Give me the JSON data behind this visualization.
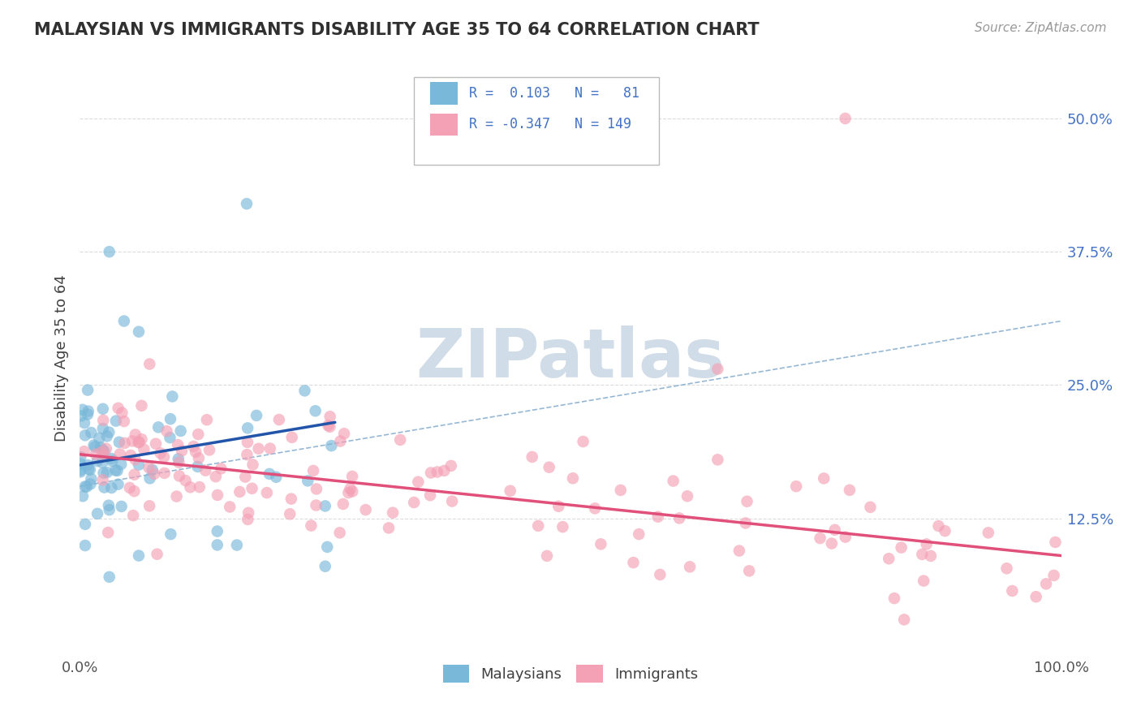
{
  "title": "MALAYSIAN VS IMMIGRANTS DISABILITY AGE 35 TO 64 CORRELATION CHART",
  "source": "Source: ZipAtlas.com",
  "ylabel": "Disability Age 35 to 64",
  "yticks": [
    "12.5%",
    "25.0%",
    "37.5%",
    "50.0%"
  ],
  "ytick_vals": [
    0.125,
    0.25,
    0.375,
    0.5
  ],
  "xlim": [
    0.0,
    1.0
  ],
  "ylim": [
    0.0,
    0.55
  ],
  "legend_label1": "Malaysians",
  "legend_label2": "Immigrants",
  "blue_color": "#7ab8d9",
  "pink_color": "#f4a0b5",
  "blue_line_color": "#2255aa",
  "pink_line_color": "#e0507a",
  "dash_line_color": "#8ab0d0",
  "background_color": "#ffffff",
  "grid_color": "#cccccc",
  "title_color": "#303030",
  "right_label_color": "#4472c4",
  "legend_text_color": "#4472c4",
  "watermark_color": "#d0dce8",
  "watermark_text": "ZIPatlas",
  "blue_line_x0": 0.0,
  "blue_line_y0": 0.175,
  "blue_line_x1": 0.26,
  "blue_line_y1": 0.215,
  "pink_line_x0": 0.0,
  "pink_line_y0": 0.185,
  "pink_line_x1": 1.0,
  "pink_line_y1": 0.09,
  "dash_line_x0": 0.0,
  "dash_line_y0": 0.155,
  "dash_line_x1": 1.0,
  "dash_line_y1": 0.31
}
